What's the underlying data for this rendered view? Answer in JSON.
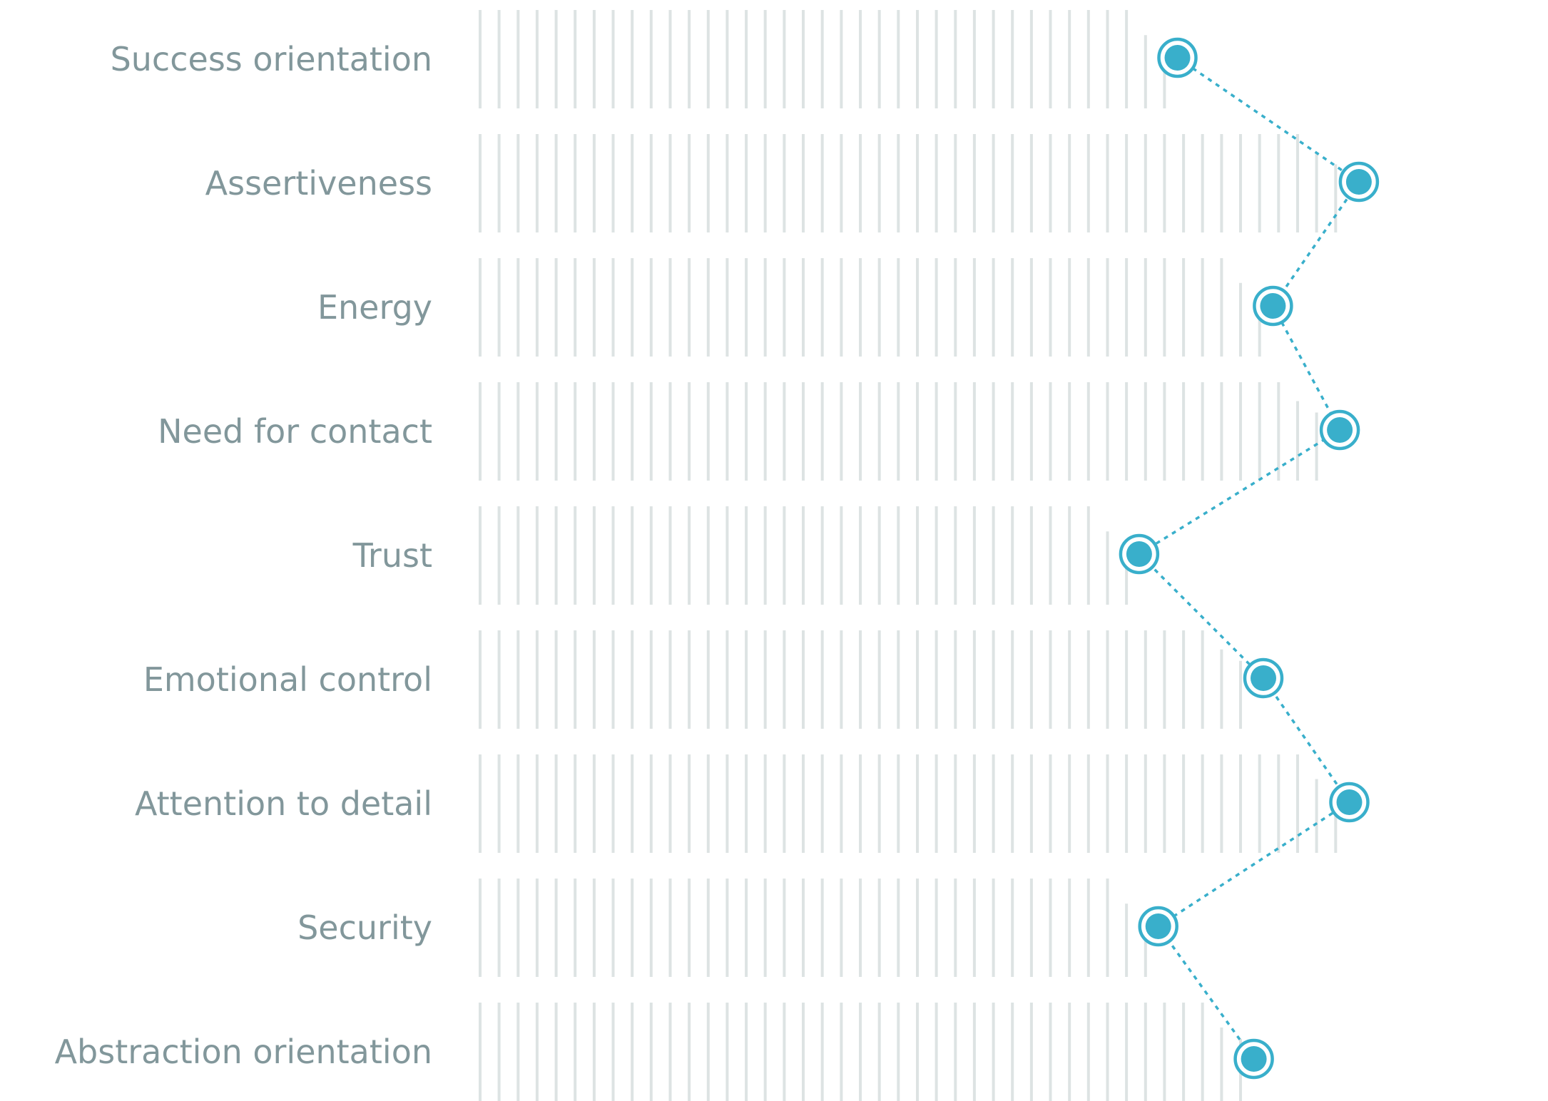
{
  "chart_data": {
    "type": "scatter",
    "title": "",
    "xlabel": "",
    "ylabel": "",
    "x_range": [
      0,
      100
    ],
    "grid": false,
    "legend": "none",
    "colors": {
      "marker": "#39afcb",
      "connector": "#39afcb",
      "bars": "#dde3e3",
      "label": "#82979b"
    },
    "categories": [
      "Success orientation",
      "Assertiveness",
      "Energy",
      "Need for contact",
      "Trust",
      "Emotional control",
      "Attention to detail",
      "Security",
      "Abstraction orientation"
    ],
    "values": [
      73,
      92,
      83,
      90,
      69,
      82,
      91,
      71,
      81
    ]
  }
}
